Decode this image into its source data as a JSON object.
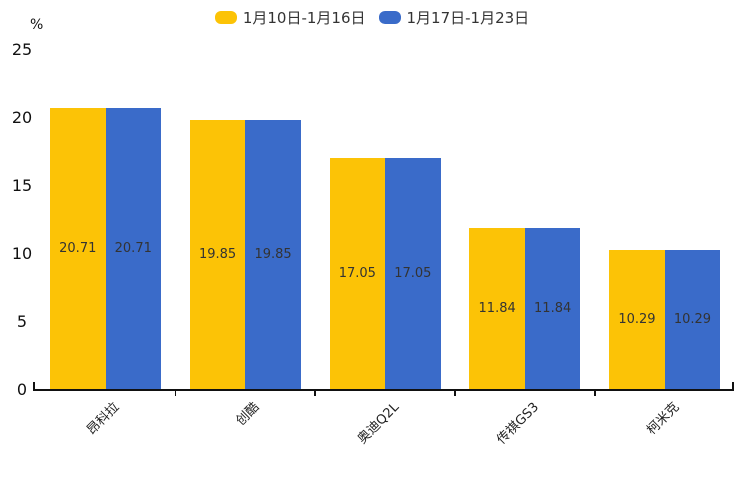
{
  "chart_data": {
    "type": "bar",
    "unit_label": "%",
    "categories": [
      "昂科拉",
      "创酷",
      "奥迪Q2L",
      "传祺GS3",
      "柯米克"
    ],
    "series": [
      {
        "name": "1月10日-1月16日",
        "color": "#FCC306",
        "values": [
          20.71,
          19.85,
          17.05,
          11.84,
          10.29
        ]
      },
      {
        "name": "1月17日-1月23日",
        "color": "#3A6BC9",
        "values": [
          20.71,
          19.85,
          17.05,
          11.84,
          10.29
        ]
      }
    ],
    "ylim": [
      0,
      25
    ],
    "yticks": [
      0,
      5,
      10,
      15,
      20,
      25
    ],
    "grid": false,
    "legend_position": "top-center",
    "value_labels_shown": true,
    "value_label_color": "#333333",
    "axis_color": "#111111"
  }
}
